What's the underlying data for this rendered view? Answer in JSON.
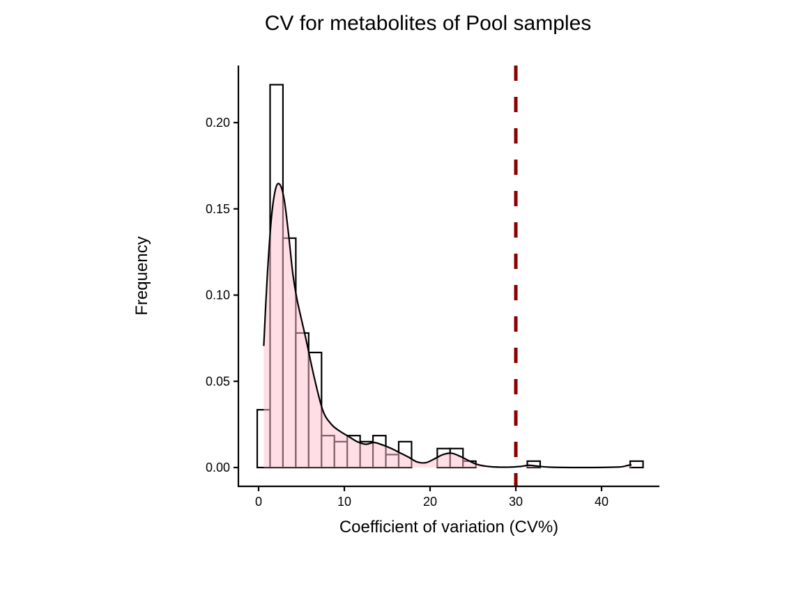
{
  "chart_data": {
    "type": "histogram",
    "title": "CV for metabolites of Pool samples",
    "xlabel": "Coefficient of variation (CV%)",
    "ylabel": "Frequency",
    "xlim": [
      -2.4,
      46.5
    ],
    "ylim": [
      -0.011,
      0.233
    ],
    "x_ticks": [
      0,
      10,
      20,
      30,
      40
    ],
    "x_tick_labels": [
      "0",
      "10",
      "20",
      "30",
      "40"
    ],
    "y_ticks": [
      0,
      0.05,
      0.1,
      0.15,
      0.2
    ],
    "y_tick_labels": [
      "0.00",
      "0.05",
      "0.10",
      "0.15",
      "0.20"
    ],
    "grid": false,
    "legend": "none",
    "histogram": {
      "bin_width": 1.5,
      "first_bin_start": -0.16,
      "values": [
        0.0335,
        0.222,
        0.133,
        0.078,
        0.0667,
        0.0185,
        0.015,
        0.0185,
        0.015,
        0.0185,
        0.0075,
        0.015,
        0,
        0,
        0.011,
        0.011,
        0.0037,
        0,
        0,
        0,
        0,
        0.0037,
        0,
        0,
        0,
        0,
        0,
        0,
        0,
        0.0037
      ],
      "fill": "#ffffff",
      "stroke": "#000000"
    },
    "density": {
      "x": [
        0.6,
        1.0,
        1.5,
        2.0,
        2.5,
        3.0,
        3.5,
        4.0,
        4.5,
        5.5,
        6.5,
        7.5,
        8.5,
        9.5,
        10.5,
        11.5,
        12.5,
        13.5,
        14.5,
        15.5,
        16.5,
        17.5,
        18.5,
        19.5,
        20.5,
        21.5,
        22.5,
        23.5,
        24.5,
        25.5,
        27.0,
        29.0,
        30.5,
        31.5,
        32.5,
        34.0,
        38.0,
        42.0,
        43.0,
        43.5
      ],
      "y": [
        0.0705,
        0.11,
        0.145,
        0.162,
        0.164,
        0.155,
        0.135,
        0.112,
        0.097,
        0.075,
        0.052,
        0.033,
        0.025,
        0.021,
        0.018,
        0.015,
        0.0135,
        0.0145,
        0.013,
        0.011,
        0.0085,
        0.006,
        0.0032,
        0.0028,
        0.005,
        0.0075,
        0.0083,
        0.0065,
        0.004,
        0.0018,
        0.0005,
        0.0002,
        0.0006,
        0.0013,
        0.0008,
        0.0002,
        0.0,
        0.0003,
        0.0012,
        0.0015
      ],
      "fill": "#FFC0CB",
      "fill_opacity": 0.5,
      "stroke": "#000000"
    },
    "vline": {
      "x": 30,
      "color": "#8B0000",
      "style": "dashed"
    }
  }
}
